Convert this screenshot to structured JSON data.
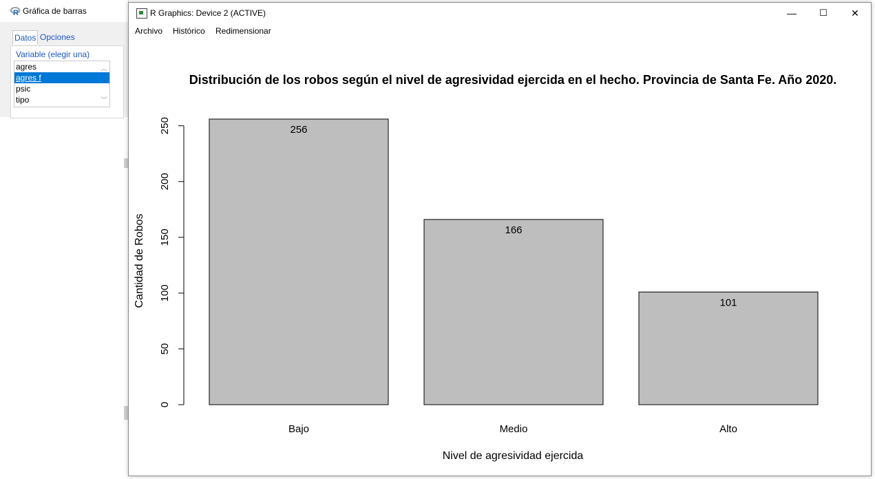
{
  "dialog": {
    "title": "Gráfica de barras",
    "tabs": [
      {
        "label": "Datos",
        "active": true
      },
      {
        "label": "Opciones",
        "active": false
      }
    ],
    "variable_label": "Variable (elegir una)",
    "variables": [
      {
        "label": "agres",
        "selected": false
      },
      {
        "label": "agres f",
        "selected": true
      },
      {
        "label": "psic",
        "selected": false
      },
      {
        "label": "tipo",
        "selected": false
      }
    ]
  },
  "window": {
    "title": "R Graphics: Device 2 (ACTIVE)",
    "controls": {
      "minimize": "—",
      "maximize": "☐",
      "close": "✕"
    },
    "menu": [
      "Archivo",
      "Histórico",
      "Redimensionar"
    ]
  },
  "colors": {
    "bar_fill": "#bebebe",
    "bar_stroke": "#000000",
    "selection": "#0078d7",
    "link_blue": "#1a56c4"
  },
  "chart_data": {
    "type": "bar",
    "title": "Distribución de los robos según el nivel de agresividad ejercida en el hecho. Provincia de Santa Fe. Año 2020.",
    "xlabel": "Nivel de agresividad ejercida",
    "ylabel": "Cantidad de Robos",
    "categories": [
      "Bajo",
      "Medio",
      "Alto"
    ],
    "values": [
      256,
      166,
      101
    ],
    "data_labels": [
      "256",
      "166",
      "101"
    ],
    "yticks": [
      0,
      50,
      100,
      150,
      200,
      250
    ],
    "ylim": [
      0,
      256
    ],
    "grid": false,
    "legend": "none"
  }
}
